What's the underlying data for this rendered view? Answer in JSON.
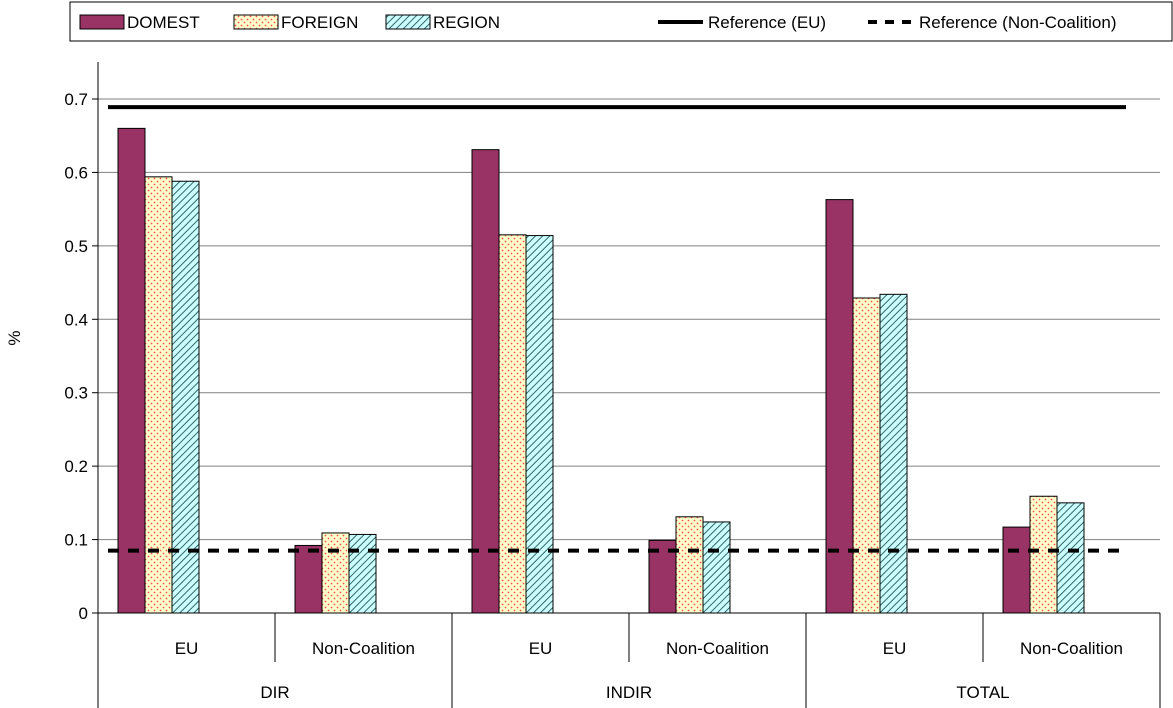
{
  "chart_data": {
    "type": "bar",
    "groups": [
      {
        "label": "DIR",
        "categories": [
          "EU",
          "Non-Coalition"
        ]
      },
      {
        "label": "INDIR",
        "categories": [
          "EU",
          "Non-Coalition"
        ]
      },
      {
        "label": "TOTAL",
        "categories": [
          "EU",
          "Non-Coalition"
        ]
      }
    ],
    "series": [
      {
        "name": "DOMEST",
        "values": [
          0.66,
          0.092,
          0.631,
          0.099,
          0.563,
          0.117
        ],
        "color": "#993366",
        "pattern": "solid"
      },
      {
        "name": "FOREIGN",
        "values": [
          0.594,
          0.109,
          0.515,
          0.131,
          0.429,
          0.159
        ],
        "color": "#ffffcc",
        "pattern": "dots",
        "pattern_color": "#ff5050"
      },
      {
        "name": "REGION",
        "values": [
          0.588,
          0.107,
          0.514,
          0.124,
          0.434,
          0.15
        ],
        "color": "#ccffff",
        "pattern": "diagonal",
        "pattern_color": "#336666"
      }
    ],
    "reference_lines": [
      {
        "name": "Reference (EU)",
        "value": 0.689,
        "style": "solid"
      },
      {
        "name": "Reference (Non-Coalition)",
        "value": 0.085,
        "style": "dashed"
      }
    ],
    "ylabel": "%",
    "ylim": [
      0,
      0.7
    ],
    "yticks": [
      "0",
      "0.1",
      "0.2",
      "0.3",
      "0.4",
      "0.5",
      "0.6",
      "0.7"
    ],
    "grid": true,
    "legend_placement": "top"
  }
}
